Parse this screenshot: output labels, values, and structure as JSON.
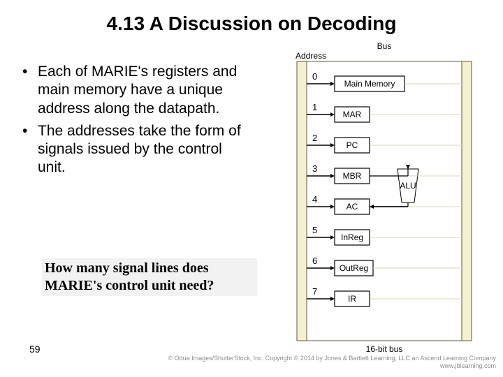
{
  "title": "4.13 A Discussion on Decoding",
  "bullets": [
    "Each of MARIE's registers and main memory have a unique address along the datapath.",
    "The addresses take the form of signals issued by the control unit."
  ],
  "question": "How many signal lines does MARIE's control unit need?",
  "page_number": "59",
  "copyright": "© Odua Images/ShutterStock, Inc. Copyright © 2014 by Jones & Bartlett Learning, LLC an Ascend Learning Company\nwww.jblearning.com",
  "diagram": {
    "bus_label_top": "Bus",
    "address_label": "Address",
    "bottom_label": "16-bit bus",
    "outer_fill": "#f5f0cd",
    "outer_stroke": "#5e5a3c",
    "inner_fill": "#ffffff",
    "line_color": "#000000",
    "box_fill": "#ffffff",
    "box_stroke": "#000000",
    "alu_fill": "#ffffff",
    "items": [
      {
        "addr": "0",
        "label": "Main Memory",
        "w": 100
      },
      {
        "addr": "1",
        "label": "MAR",
        "w": 50
      },
      {
        "addr": "2",
        "label": "PC",
        "w": 50
      },
      {
        "addr": "3",
        "label": "MBR",
        "w": 50,
        "alu_right": true
      },
      {
        "addr": "4",
        "label": "AC",
        "w": 50,
        "alu_conn": true
      },
      {
        "addr": "5",
        "label": "InReg",
        "w": 50
      },
      {
        "addr": "6",
        "label": "OutReg",
        "w": 55
      },
      {
        "addr": "7",
        "label": "IR",
        "w": 50
      }
    ]
  }
}
